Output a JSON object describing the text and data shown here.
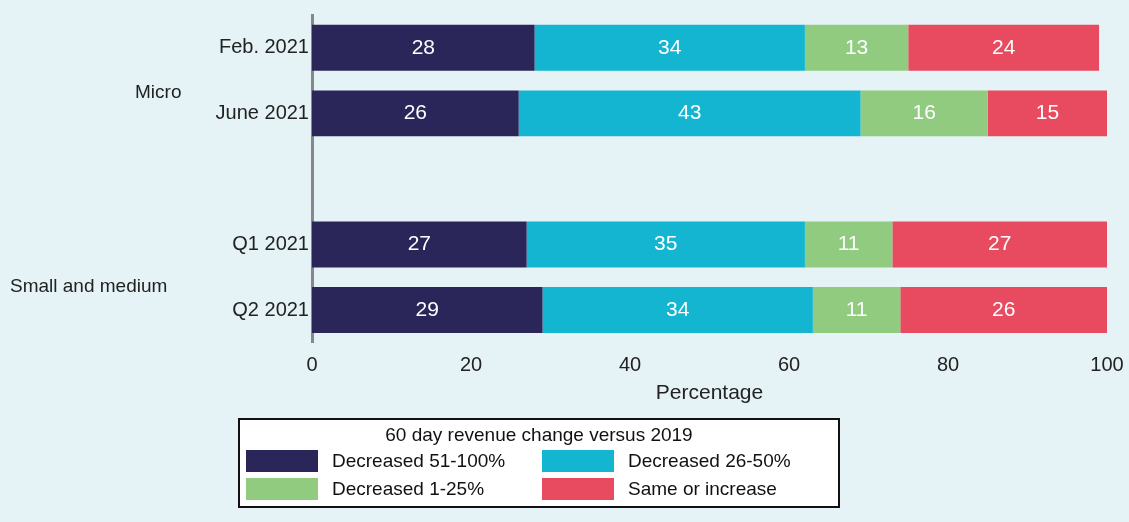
{
  "chart_data": {
    "type": "bar",
    "orientation": "horizontal",
    "stacked": true,
    "categories": [
      "Feb. 2021",
      "June 2021",
      null,
      "Q1 2021",
      "Q2 2021"
    ],
    "series": [
      {
        "name": "Decreased 51-100%",
        "color": "#2b2659",
        "values": [
          28,
          26,
          null,
          27,
          29
        ]
      },
      {
        "name": "Decreased 26-50%",
        "color": "#14b5d1",
        "values": [
          34,
          43,
          null,
          35,
          34
        ]
      },
      {
        "name": "Decreased 1-25%",
        "color": "#90cb7f",
        "values": [
          13,
          16,
          null,
          11,
          11
        ]
      },
      {
        "name": "Same or increase",
        "color": "#e84b5f",
        "values": [
          24,
          15,
          null,
          27,
          26
        ]
      }
    ],
    "xlabel": "Percentage",
    "legend_title": "60 day revenue change versus 2019",
    "xlim": [
      0,
      100
    ],
    "xticks": [
      0,
      20,
      40,
      60,
      80,
      100
    ],
    "annotations": [
      "Micro",
      "Small and medium"
    ],
    "data_labels": true,
    "grid": false,
    "legend": "bottom"
  }
}
